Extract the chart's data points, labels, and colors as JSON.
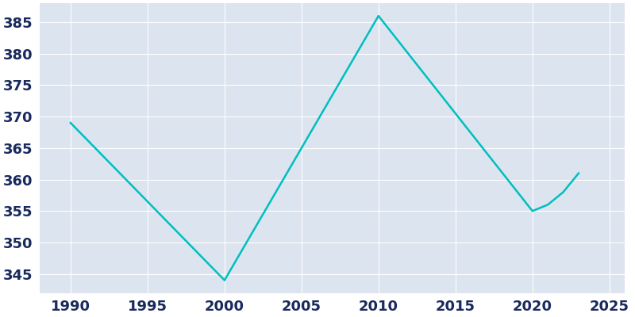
{
  "years": [
    1990,
    2000,
    2010,
    2020,
    2021,
    2022,
    2023
  ],
  "population": [
    369,
    344,
    386,
    355,
    356,
    358,
    361
  ],
  "line_color": "#00BFBF",
  "fig_bg_color": "#FFFFFF",
  "plot_bg_color": "#DCE4EF",
  "xlim": [
    1988,
    2026
  ],
  "ylim": [
    342,
    388
  ],
  "xticks": [
    1990,
    1995,
    2000,
    2005,
    2010,
    2015,
    2020,
    2025
  ],
  "yticks": [
    345,
    350,
    355,
    360,
    365,
    370,
    375,
    380,
    385
  ],
  "tick_color": "#1a2a5e",
  "grid_color": "#FFFFFF",
  "linewidth": 1.8,
  "tick_fontsize": 13
}
